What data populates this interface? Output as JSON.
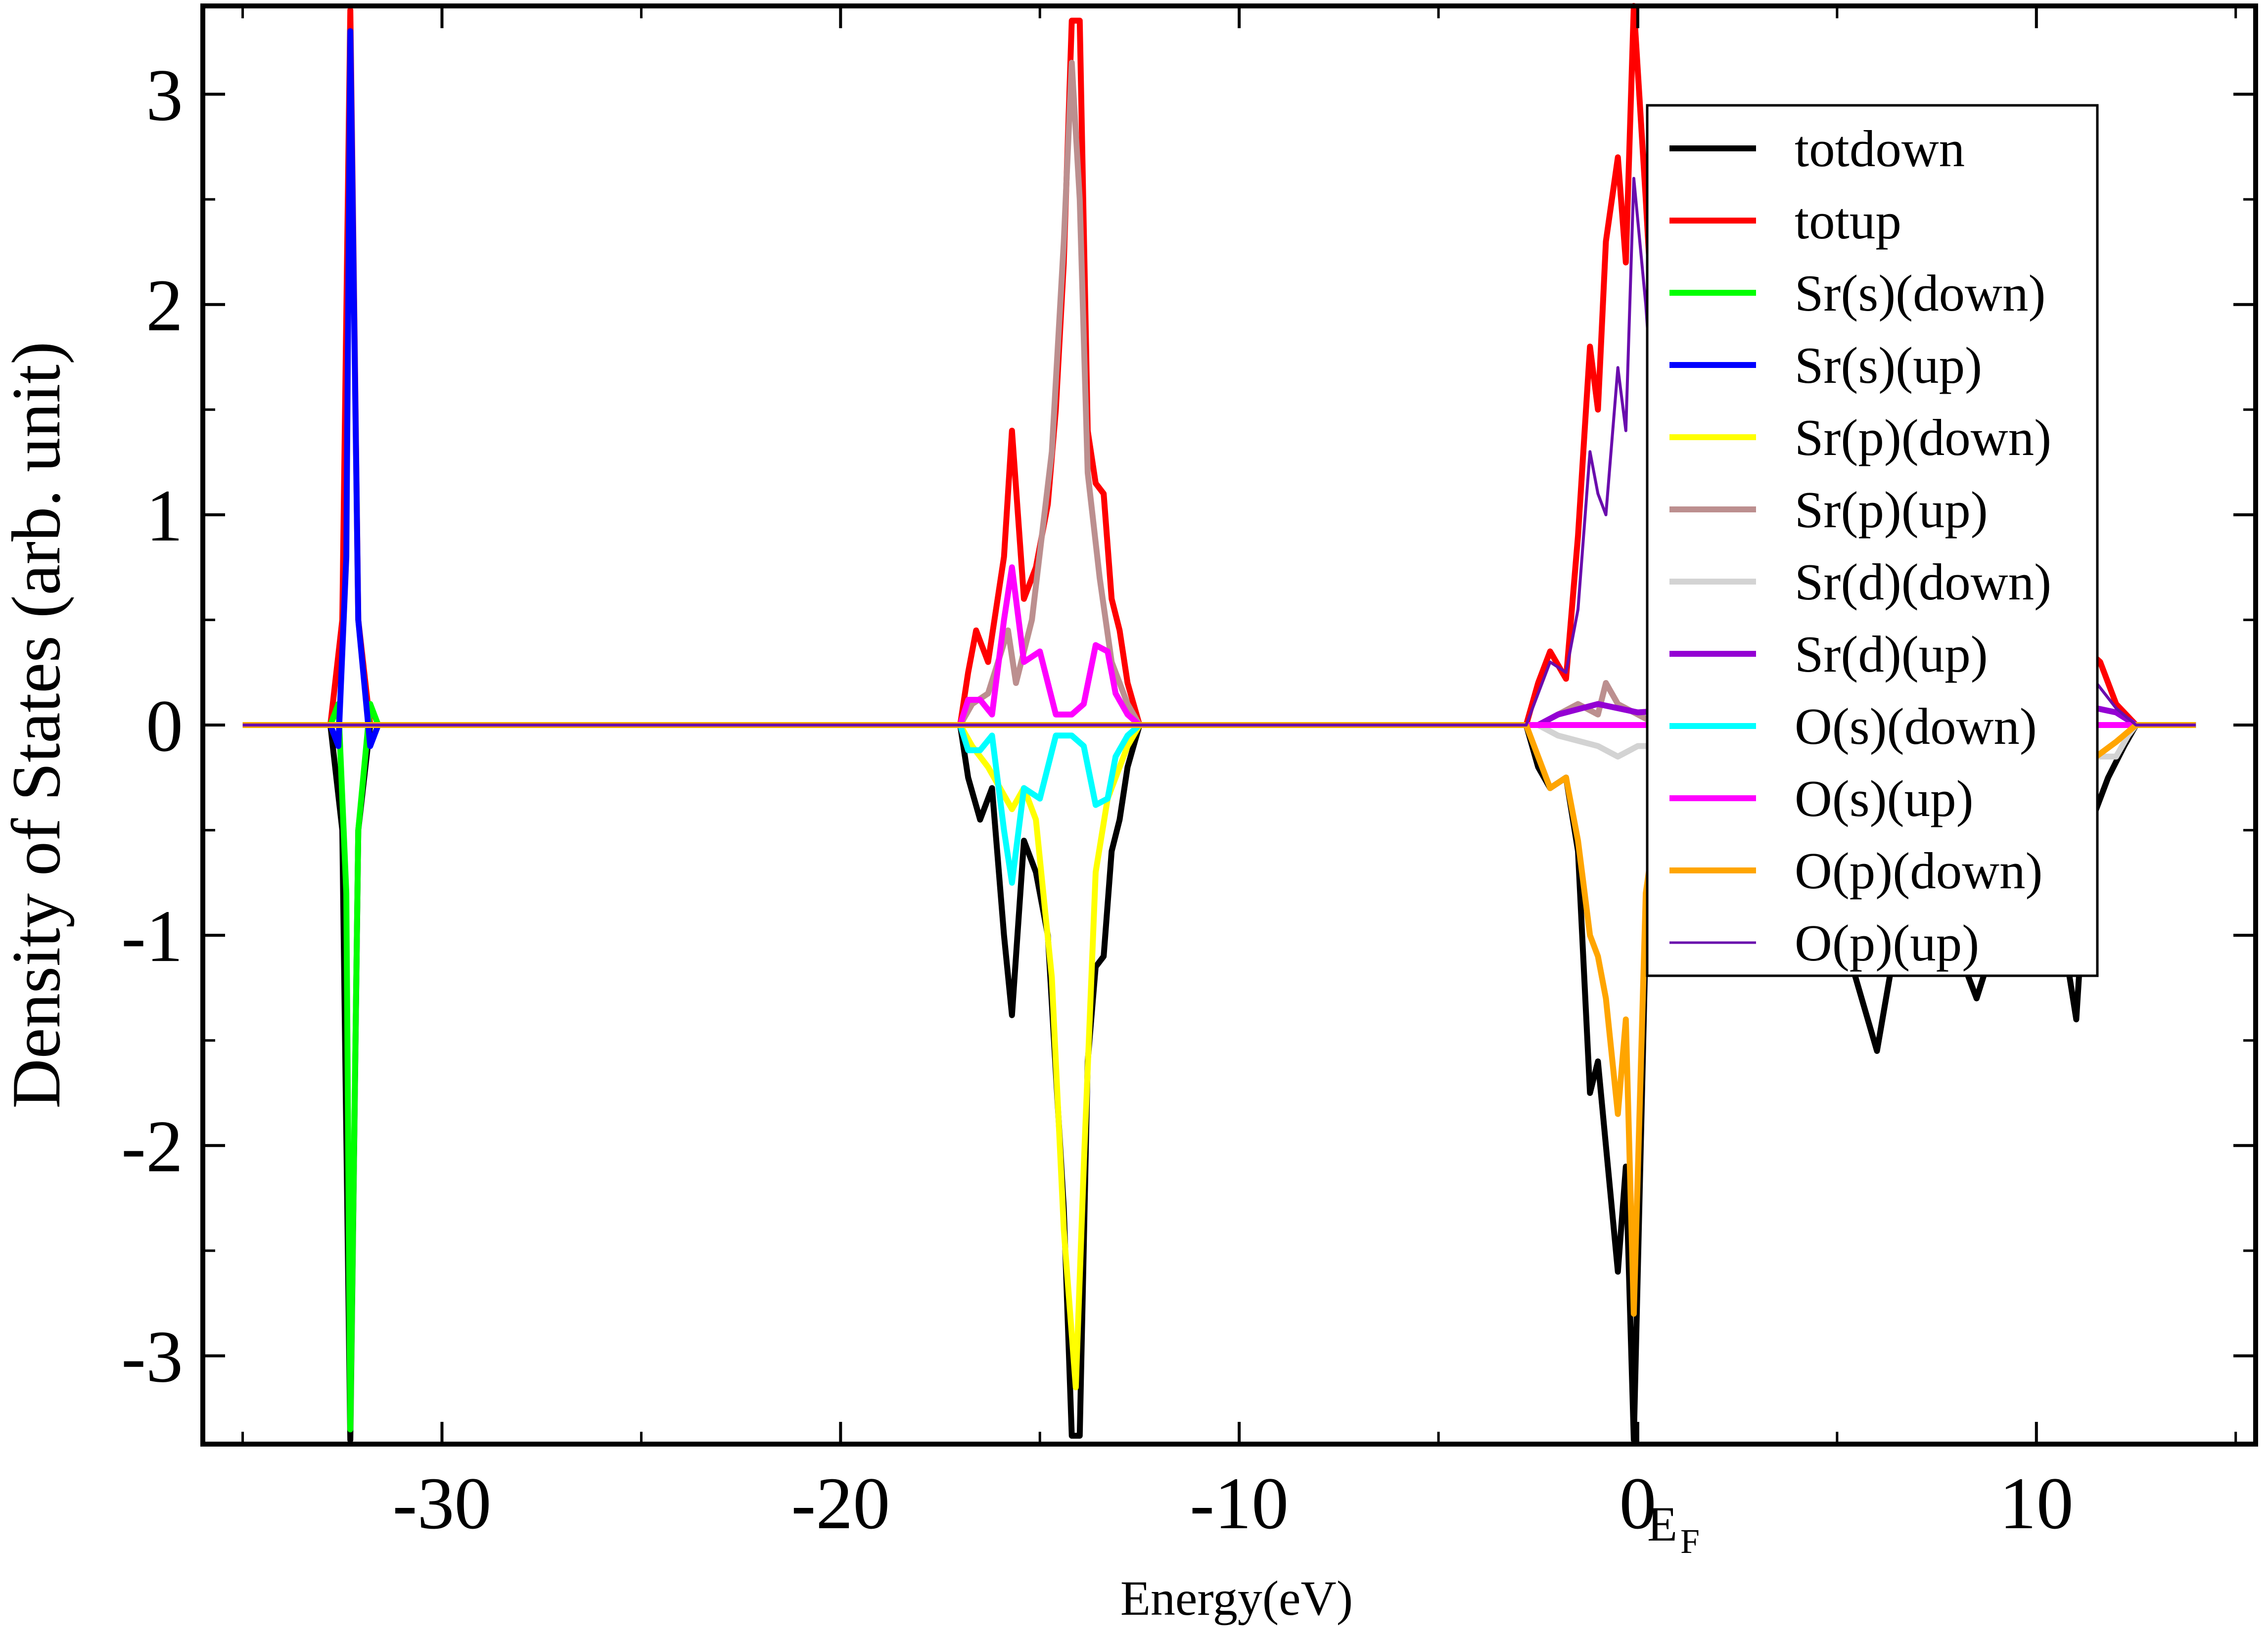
{
  "chart_data": {
    "type": "line",
    "title": "",
    "xlabel": "Energy(eV)",
    "ylabel": "Density of States (arb. unit)",
    "xlim": [
      -36,
      15.5
    ],
    "ylim": [
      -3.42,
      3.42
    ],
    "x_ticks": [
      -30,
      -20,
      -10,
      0,
      10
    ],
    "x_tick_labels": [
      "-30",
      "-20",
      "-10",
      "0",
      "10"
    ],
    "x_minor_ticks": [
      -35,
      -25,
      -15,
      -5,
      5,
      15
    ],
    "y_ticks": [
      -3,
      -2,
      -1,
      0,
      1,
      2,
      3
    ],
    "y_tick_labels": [
      "-3",
      "-2",
      "-1",
      "0",
      "1",
      "2",
      "3"
    ],
    "grid": false,
    "legend_position": "top-right",
    "annotations": [
      {
        "text": "E",
        "subscript": "F",
        "x": 0
      }
    ],
    "series": [
      {
        "name": "totdown",
        "color": "#000000",
        "points": [
          [
            -35,
            0
          ],
          [
            -32.8,
            0
          ],
          [
            -32.5,
            -0.5
          ],
          [
            -32.3,
            -3.4
          ],
          [
            -32.1,
            -0.5
          ],
          [
            -31.8,
            0
          ],
          [
            -17,
            0
          ],
          [
            -16.8,
            -0.25
          ],
          [
            -16.5,
            -0.45
          ],
          [
            -16.2,
            -0.3
          ],
          [
            -15.9,
            -1.0
          ],
          [
            -15.7,
            -1.38
          ],
          [
            -15.4,
            -0.55
          ],
          [
            -15.1,
            -0.7
          ],
          [
            -14.8,
            -1.0
          ],
          [
            -14.4,
            -2.3
          ],
          [
            -14.2,
            -3.38
          ],
          [
            -14.0,
            -3.38
          ],
          [
            -13.8,
            -1.6
          ],
          [
            -13.6,
            -1.15
          ],
          [
            -13.4,
            -1.1
          ],
          [
            -13.2,
            -0.6
          ],
          [
            -13.0,
            -0.45
          ],
          [
            -12.8,
            -0.2
          ],
          [
            -12.5,
            0
          ],
          [
            -2.8,
            0
          ],
          [
            -2.5,
            -0.2
          ],
          [
            -2.2,
            -0.3
          ],
          [
            -1.8,
            -0.25
          ],
          [
            -1.5,
            -0.6
          ],
          [
            -1.2,
            -1.75
          ],
          [
            -1.0,
            -1.6
          ],
          [
            -0.8,
            -2.0
          ],
          [
            -0.5,
            -2.6
          ],
          [
            -0.3,
            -2.1
          ],
          [
            -0.1,
            -3.4
          ],
          [
            0.2,
            -1.0
          ],
          [
            0.5,
            -0.6
          ],
          [
            1.0,
            -0.6
          ],
          [
            3.0,
            -0.4
          ],
          [
            5.0,
            -0.9
          ],
          [
            6.0,
            -1.55
          ],
          [
            6.5,
            -1.0
          ],
          [
            7.5,
            -0.8
          ],
          [
            8.5,
            -1.3
          ],
          [
            9.5,
            -0.7
          ],
          [
            10.5,
            -0.8
          ],
          [
            11.0,
            -1.4
          ],
          [
            11.3,
            -0.5
          ],
          [
            11.8,
            -0.25
          ],
          [
            12.2,
            -0.1
          ],
          [
            12.5,
            0
          ],
          [
            14,
            0
          ]
        ]
      },
      {
        "name": "totup",
        "color": "#ff0000",
        "points": [
          [
            -35,
            0
          ],
          [
            -32.8,
            0
          ],
          [
            -32.5,
            0.5
          ],
          [
            -32.3,
            3.4
          ],
          [
            -32.1,
            0.5
          ],
          [
            -31.8,
            0
          ],
          [
            -17,
            0
          ],
          [
            -16.8,
            0.25
          ],
          [
            -16.6,
            0.45
          ],
          [
            -16.3,
            0.3
          ],
          [
            -15.9,
            0.8
          ],
          [
            -15.7,
            1.4
          ],
          [
            -15.4,
            0.6
          ],
          [
            -15.1,
            0.75
          ],
          [
            -14.8,
            1.05
          ],
          [
            -14.6,
            1.5
          ],
          [
            -14.4,
            2.2
          ],
          [
            -14.2,
            3.35
          ],
          [
            -14.0,
            3.35
          ],
          [
            -13.8,
            1.4
          ],
          [
            -13.6,
            1.15
          ],
          [
            -13.4,
            1.1
          ],
          [
            -13.2,
            0.6
          ],
          [
            -13.0,
            0.45
          ],
          [
            -12.8,
            0.2
          ],
          [
            -12.5,
            0
          ],
          [
            -2.8,
            0
          ],
          [
            -2.5,
            0.2
          ],
          [
            -2.2,
            0.35
          ],
          [
            -1.8,
            0.22
          ],
          [
            -1.5,
            0.9
          ],
          [
            -1.2,
            1.8
          ],
          [
            -1.0,
            1.5
          ],
          [
            -0.8,
            2.3
          ],
          [
            -0.5,
            2.7
          ],
          [
            -0.3,
            2.2
          ],
          [
            -0.1,
            3.42
          ],
          [
            0.2,
            2.5
          ],
          [
            0.5,
            1.5
          ],
          [
            3.0,
            0.9
          ],
          [
            6.0,
            0.8
          ],
          [
            9.0,
            0.6
          ],
          [
            11.0,
            0.8
          ],
          [
            11.3,
            0.35
          ],
          [
            11.6,
            0.3
          ],
          [
            12.0,
            0.1
          ],
          [
            12.5,
            0
          ],
          [
            14,
            0
          ]
        ]
      },
      {
        "name": "Sr(s)(down)",
        "color": "#00ff00",
        "points": [
          [
            -35,
            0
          ],
          [
            -32.8,
            0
          ],
          [
            -32.6,
            0.1
          ],
          [
            -32.4,
            -0.8
          ],
          [
            -32.3,
            -3.35
          ],
          [
            -32.1,
            -0.5
          ],
          [
            -31.8,
            0.1
          ],
          [
            -31.6,
            0
          ],
          [
            14,
            0
          ]
        ]
      },
      {
        "name": "Sr(s)(up)",
        "color": "#0000ff",
        "points": [
          [
            -35,
            0
          ],
          [
            -32.8,
            0
          ],
          [
            -32.6,
            -0.1
          ],
          [
            -32.4,
            0.8
          ],
          [
            -32.3,
            3.3
          ],
          [
            -32.1,
            0.5
          ],
          [
            -31.8,
            -0.1
          ],
          [
            -31.6,
            0
          ],
          [
            14,
            0
          ]
        ]
      },
      {
        "name": "Sr(p)(down)",
        "color": "#ffff00",
        "points": [
          [
            -35,
            0
          ],
          [
            -17,
            0
          ],
          [
            -16.7,
            -0.1
          ],
          [
            -16.3,
            -0.2
          ],
          [
            -15.7,
            -0.4
          ],
          [
            -15.4,
            -0.3
          ],
          [
            -15.1,
            -0.45
          ],
          [
            -14.7,
            -1.2
          ],
          [
            -14.4,
            -2.4
          ],
          [
            -14.1,
            -3.15
          ],
          [
            -13.9,
            -2.1
          ],
          [
            -13.6,
            -0.7
          ],
          [
            -13.3,
            -0.35
          ],
          [
            -12.8,
            -0.1
          ],
          [
            -12.5,
            0
          ],
          [
            14,
            0
          ]
        ]
      },
      {
        "name": "Sr(p)(up)",
        "color": "#bc8f8f",
        "points": [
          [
            -35,
            0
          ],
          [
            -17,
            0
          ],
          [
            -16.7,
            0.1
          ],
          [
            -16.3,
            0.15
          ],
          [
            -15.8,
            0.45
          ],
          [
            -15.6,
            0.2
          ],
          [
            -15.2,
            0.5
          ],
          [
            -14.7,
            1.3
          ],
          [
            -14.4,
            2.3
          ],
          [
            -14.2,
            3.15
          ],
          [
            -14.0,
            2.5
          ],
          [
            -13.8,
            1.2
          ],
          [
            -13.5,
            0.7
          ],
          [
            -13.2,
            0.3
          ],
          [
            -12.8,
            0.1
          ],
          [
            -12.5,
            0
          ],
          [
            -2.5,
            0
          ],
          [
            -1.5,
            0.1
          ],
          [
            -1.0,
            0.05
          ],
          [
            -0.8,
            0.2
          ],
          [
            -0.5,
            0.1
          ],
          [
            0,
            0.05
          ],
          [
            0.5,
            0
          ],
          [
            14,
            0
          ]
        ]
      },
      {
        "name": "Sr(d)(down)",
        "color": "#d3d3d3",
        "points": [
          [
            -35,
            0
          ],
          [
            -2.5,
            0
          ],
          [
            -2.0,
            -0.05
          ],
          [
            -1.0,
            -0.1
          ],
          [
            -0.5,
            -0.15
          ],
          [
            0,
            -0.1
          ],
          [
            3.0,
            -0.1
          ],
          [
            8.0,
            -0.1
          ],
          [
            11.5,
            -0.15
          ],
          [
            12.0,
            -0.15
          ],
          [
            12.3,
            -0.05
          ],
          [
            12.5,
            0
          ],
          [
            14,
            0
          ]
        ]
      },
      {
        "name": "Sr(d)(up)",
        "color": "#9400d3",
        "points": [
          [
            -35,
            0
          ],
          [
            -2.5,
            0
          ],
          [
            -2.0,
            0.05
          ],
          [
            -1.0,
            0.1
          ],
          [
            -0.5,
            0.08
          ],
          [
            0,
            0.06
          ],
          [
            3.0,
            0.1
          ],
          [
            8.0,
            0.1
          ],
          [
            11.5,
            0.08
          ],
          [
            12.0,
            0.06
          ],
          [
            12.5,
            0
          ],
          [
            14,
            0
          ]
        ]
      },
      {
        "name": "O(s)(down)",
        "color": "#00ffff",
        "points": [
          [
            -35,
            0
          ],
          [
            -17,
            0
          ],
          [
            -16.8,
            -0.12
          ],
          [
            -16.5,
            -0.12
          ],
          [
            -16.2,
            -0.05
          ],
          [
            -15.9,
            -0.5
          ],
          [
            -15.7,
            -0.75
          ],
          [
            -15.4,
            -0.3
          ],
          [
            -15.0,
            -0.35
          ],
          [
            -14.6,
            -0.05
          ],
          [
            -14.2,
            -0.05
          ],
          [
            -13.9,
            -0.1
          ],
          [
            -13.6,
            -0.38
          ],
          [
            -13.3,
            -0.35
          ],
          [
            -13.1,
            -0.15
          ],
          [
            -12.8,
            -0.05
          ],
          [
            -12.5,
            0
          ],
          [
            14,
            0
          ]
        ]
      },
      {
        "name": "O(s)(up)",
        "color": "#ff00ff",
        "points": [
          [
            -35,
            0
          ],
          [
            -17,
            0
          ],
          [
            -16.8,
            0.12
          ],
          [
            -16.5,
            0.12
          ],
          [
            -16.2,
            0.05
          ],
          [
            -15.9,
            0.5
          ],
          [
            -15.7,
            0.75
          ],
          [
            -15.4,
            0.3
          ],
          [
            -15.0,
            0.35
          ],
          [
            -14.6,
            0.05
          ],
          [
            -14.2,
            0.05
          ],
          [
            -13.9,
            0.1
          ],
          [
            -13.6,
            0.38
          ],
          [
            -13.3,
            0.35
          ],
          [
            -13.1,
            0.15
          ],
          [
            -12.8,
            0.05
          ],
          [
            -12.5,
            0
          ],
          [
            14,
            0
          ]
        ]
      },
      {
        "name": "O(p)(down)",
        "color": "#ffa500",
        "points": [
          [
            -35,
            0
          ],
          [
            -2.8,
            0
          ],
          [
            -2.5,
            -0.15
          ],
          [
            -2.2,
            -0.3
          ],
          [
            -1.8,
            -0.25
          ],
          [
            -1.5,
            -0.55
          ],
          [
            -1.2,
            -1.0
          ],
          [
            -1.0,
            -1.1
          ],
          [
            -0.8,
            -1.3
          ],
          [
            -0.5,
            -1.85
          ],
          [
            -0.3,
            -1.4
          ],
          [
            -0.1,
            -2.8
          ],
          [
            0.2,
            -0.8
          ],
          [
            0.5,
            -0.4
          ],
          [
            3.0,
            -0.2
          ],
          [
            8.0,
            -0.2
          ],
          [
            11.5,
            -0.15
          ],
          [
            12.0,
            -0.08
          ],
          [
            12.5,
            0
          ],
          [
            14,
            0
          ]
        ]
      },
      {
        "name": "O(p)(up)",
        "color": "#6a0dad",
        "points": [
          [
            -35,
            0
          ],
          [
            -2.8,
            0
          ],
          [
            -2.5,
            0.15
          ],
          [
            -2.2,
            0.3
          ],
          [
            -1.8,
            0.25
          ],
          [
            -1.5,
            0.55
          ],
          [
            -1.2,
            1.3
          ],
          [
            -1.0,
            1.1
          ],
          [
            -0.8,
            1.0
          ],
          [
            -0.5,
            1.7
          ],
          [
            -0.3,
            1.4
          ],
          [
            -0.1,
            2.6
          ],
          [
            0.2,
            2.0
          ],
          [
            0.5,
            1.2
          ],
          [
            3.0,
            0.7
          ],
          [
            6.0,
            0.6
          ],
          [
            9.0,
            0.5
          ],
          [
            11.0,
            0.6
          ],
          [
            11.3,
            0.25
          ],
          [
            12.0,
            0.08
          ],
          [
            12.5,
            0
          ],
          [
            14,
            0
          ]
        ]
      }
    ]
  }
}
